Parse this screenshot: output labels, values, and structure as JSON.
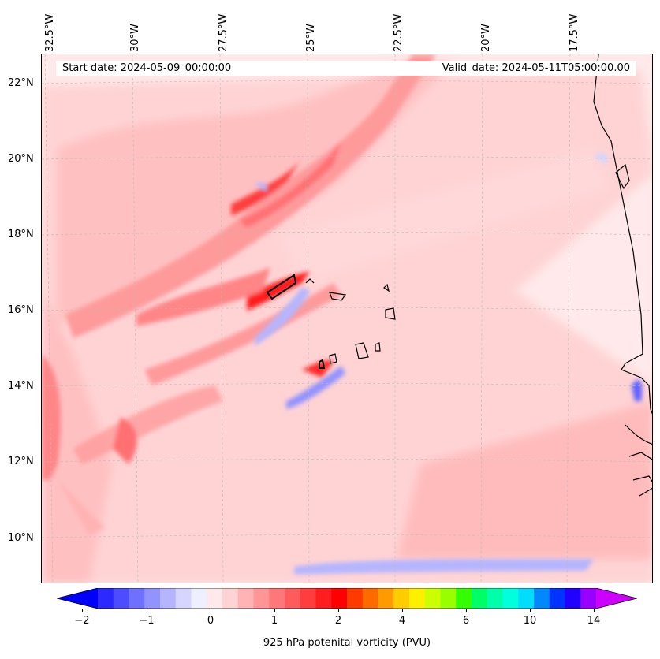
{
  "map": {
    "start_date": "Start date: 2024-05-09_00:00:00",
    "valid_date": "Valid_date: 2024-05-11T05:00:00.00",
    "lon_labels": [
      "32.5°W",
      "30°W",
      "27.5°W",
      "25°W",
      "22.5°W",
      "20°W",
      "17.5°W"
    ],
    "lat_labels": [
      "22°N",
      "20°N",
      "18°N",
      "16°N",
      "14°N",
      "12°N",
      "10°N"
    ],
    "field": "925 hPa potential vorticity"
  },
  "colorbar": {
    "label": "925 hPa potenital vorticity (PVU)",
    "ticks": [
      "−2",
      "−1",
      "0",
      "1",
      "2",
      "4",
      "6",
      "10",
      "14"
    ],
    "colors": [
      "#0000ff",
      "#2a2aff",
      "#4d4dff",
      "#7070ff",
      "#9393ff",
      "#b5b5ff",
      "#d5d5ff",
      "#eef0ff",
      "#ffe9ea",
      "#ffd3d4",
      "#ffb3b4",
      "#ff9596",
      "#ff7778",
      "#ff5a5c",
      "#ff3c3e",
      "#ff1d1f",
      "#ff0000",
      "#ff3a00",
      "#ff6a00",
      "#ff9a00",
      "#ffcc00",
      "#fff000",
      "#ccff00",
      "#99ff00",
      "#33ff00",
      "#00ff66",
      "#00ffaa",
      "#00ffdd",
      "#00ddff",
      "#0088ff",
      "#0033ff",
      "#2200ff",
      "#9a00ff",
      "#cc00ff"
    ]
  }
}
